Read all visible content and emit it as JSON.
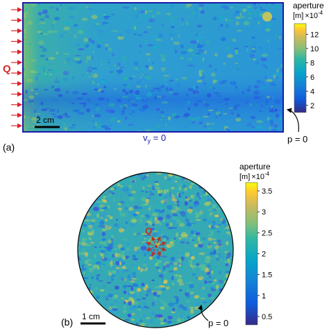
{
  "panel_a": {
    "label": "(a)",
    "flow_label": "Q",
    "scale_label": "2 cm",
    "bottom_bc": "v",
    "bottom_bc_sub": "y",
    "bottom_bc_value": " = 0",
    "right_bc": "p = 0",
    "colorbar": {
      "title": "aperture",
      "unit_prefix": "[m]",
      "unit_exp": "×10",
      "unit_pow": "-4",
      "ticks": [
        "12",
        "10",
        "8",
        "6",
        "4",
        "2"
      ],
      "tick_values": [
        12,
        10,
        8,
        6,
        4,
        2
      ],
      "range": [
        1,
        13.5
      ]
    },
    "colors": {
      "field": "#2f9fd0",
      "boundary": "#1a1aa8",
      "inlet": "#e0202a",
      "label": "#d42a2a"
    }
  },
  "panel_b": {
    "label": "(b)",
    "flow_label": "Q",
    "scale_label": "1 cm",
    "right_bc": "p = 0",
    "colorbar": {
      "title": "aperture",
      "unit_prefix": "[m]",
      "unit_exp": "×10",
      "unit_pow": "-4",
      "ticks": [
        "3.5",
        "3",
        "2.5",
        "2",
        "1.5",
        "1",
        "0.5"
      ],
      "tick_values": [
        3.5,
        3,
        2.5,
        2,
        1.5,
        1,
        0.5
      ],
      "range": [
        0.3,
        3.7
      ]
    },
    "colors": {
      "field": "#32a8b8",
      "inlet": "#c03020"
    }
  },
  "colormap": "parula"
}
